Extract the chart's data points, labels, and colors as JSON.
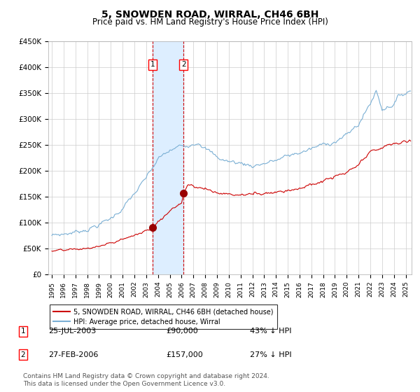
{
  "title": "5, SNOWDEN ROAD, WIRRAL, CH46 6BH",
  "subtitle": "Price paid vs. HM Land Registry's House Price Index (HPI)",
  "title_fontsize": 10,
  "subtitle_fontsize": 8.5,
  "ylim": [
    0,
    450000
  ],
  "yticks": [
    0,
    50000,
    100000,
    150000,
    200000,
    250000,
    300000,
    350000,
    400000,
    450000
  ],
  "ytick_labels": [
    "£0",
    "£50K",
    "£100K",
    "£150K",
    "£200K",
    "£250K",
    "£300K",
    "£350K",
    "£400K",
    "£450K"
  ],
  "xlim_start": 1994.7,
  "xlim_end": 2025.5,
  "sale1_x": 2003.56,
  "sale1_y": 90000,
  "sale1_label": "25-JUL-2003",
  "sale1_price": "£90,000",
  "sale1_hpi": "43% ↓ HPI",
  "sale2_x": 2006.16,
  "sale2_y": 157000,
  "sale2_label": "27-FEB-2006",
  "sale2_price": "£157,000",
  "sale2_hpi": "27% ↓ HPI",
  "red_line_color": "#cc0000",
  "blue_line_color": "#7aafd4",
  "marker_color": "#990000",
  "shade_color": "#ddeeff",
  "grid_color": "#cccccc",
  "bg_color": "#ffffff",
  "legend_line1": "5, SNOWDEN ROAD, WIRRAL, CH46 6BH (detached house)",
  "legend_line2": "HPI: Average price, detached house, Wirral",
  "footnote": "Contains HM Land Registry data © Crown copyright and database right 2024.\nThis data is licensed under the Open Government Licence v3.0.",
  "footnote_fontsize": 6.5
}
